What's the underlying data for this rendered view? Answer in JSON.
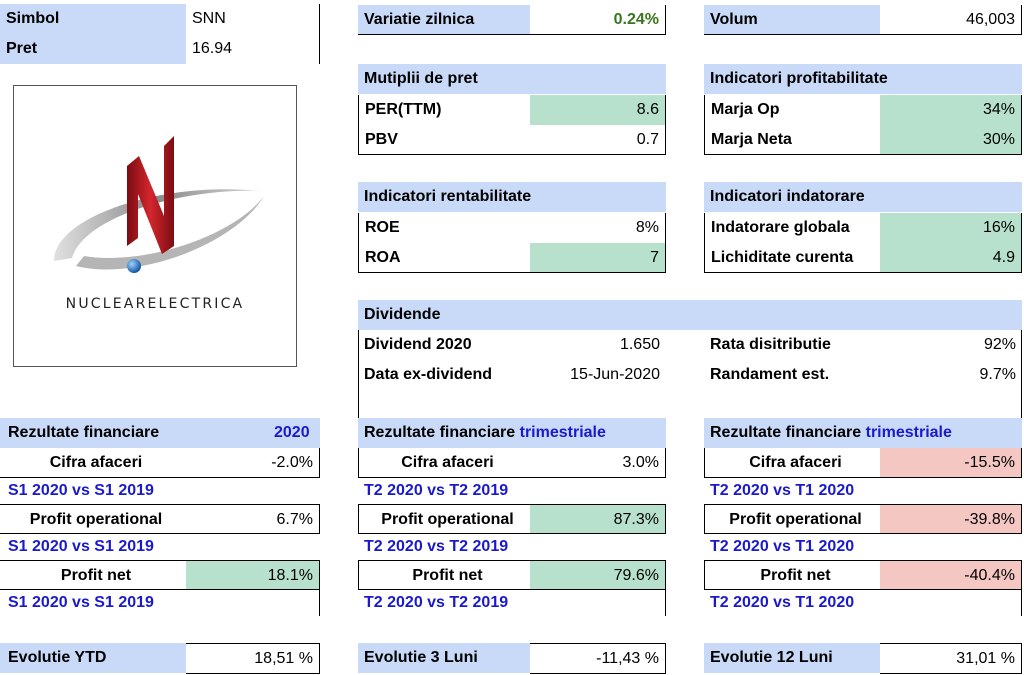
{
  "symbol": {
    "label": "Simbol",
    "value": "SNN"
  },
  "price": {
    "label": "Pret",
    "value": "16.94"
  },
  "daily_change": {
    "label": "Variatie zilnica",
    "value": "0.24%",
    "color": "#38761d"
  },
  "volume": {
    "label": "Volum",
    "value": "46,003"
  },
  "logo": {
    "icon": "nuclearelectrica-logo",
    "text": "NUCLEARELECTRICA",
    "accent": "#c0272d"
  },
  "multiples": {
    "title": "Mutiplii de pret",
    "rows": [
      {
        "label": "PER(TTM)",
        "value": "8.6"
      },
      {
        "label": "PBV",
        "value": "0.7"
      }
    ]
  },
  "profitability": {
    "title": "Indicatori profitabilitate",
    "rows": [
      {
        "label": "Marja Op",
        "value": "34%"
      },
      {
        "label": "Marja Neta",
        "value": "30%"
      }
    ]
  },
  "returns": {
    "title": "Indicatori rentabilitate",
    "rows": [
      {
        "label": "ROE",
        "value": "8%"
      },
      {
        "label": "ROA",
        "value": "7"
      }
    ]
  },
  "debt": {
    "title": "Indicatori indatorare",
    "rows": [
      {
        "label": "Indatorare globala",
        "value": "16%"
      },
      {
        "label": "Lichiditate curenta",
        "value": "4.9"
      }
    ]
  },
  "dividends": {
    "title": "Dividende",
    "dividend_label": "Dividend 2020",
    "dividend_value": "1.650",
    "exdate_label": "Data ex-dividend",
    "exdate_value": "15-Jun-2020",
    "payout_label": "Rata disitributie",
    "payout_value": "92%",
    "yield_label": "Randament est.",
    "yield_value": "9.7%"
  },
  "results_annual": {
    "title": "Rezultate financiare",
    "period": "2020",
    "rows": [
      {
        "label": "Cifra afaceri",
        "value": "-2.0%",
        "compare": "S1 2020 vs S1 2019"
      },
      {
        "label": "Profit operational",
        "value": "6.7%",
        "compare": "S1 2020 vs S1 2019"
      },
      {
        "label": "Profit net",
        "value": "18.1%",
        "compare": "S1 2020 vs S1 2019"
      }
    ]
  },
  "results_q_yoy": {
    "title": "Rezultate financiare",
    "period": "trimestriale",
    "rows": [
      {
        "label": "Cifra afaceri",
        "value": "3.0%",
        "compare": "T2 2020 vs T2 2019"
      },
      {
        "label": "Profit operational",
        "value": "87.3%",
        "compare": "T2 2020 vs T2 2019"
      },
      {
        "label": "Profit net",
        "value": "79.6%",
        "compare": "T2 2020 vs T2 2019"
      }
    ]
  },
  "results_q_qoq": {
    "title": "Rezultate financiare",
    "period": "trimestriale",
    "rows": [
      {
        "label": "Cifra afaceri",
        "value": "-15.5%",
        "compare": "T2 2020 vs T1 2020"
      },
      {
        "label": "Profit operational",
        "value": "-39.8%",
        "compare": "T2 2020 vs T1 2020"
      },
      {
        "label": "Profit net",
        "value": "-40.4%",
        "compare": "T2 2020 vs T1 2020"
      }
    ]
  },
  "evolution": [
    {
      "label": "Evolutie YTD",
      "value": "18,51 %"
    },
    {
      "label": "Evolutie 3 Luni",
      "value": "-11,43 %"
    },
    {
      "label": "Evolutie 12 Luni",
      "value": "31,01 %"
    }
  ]
}
